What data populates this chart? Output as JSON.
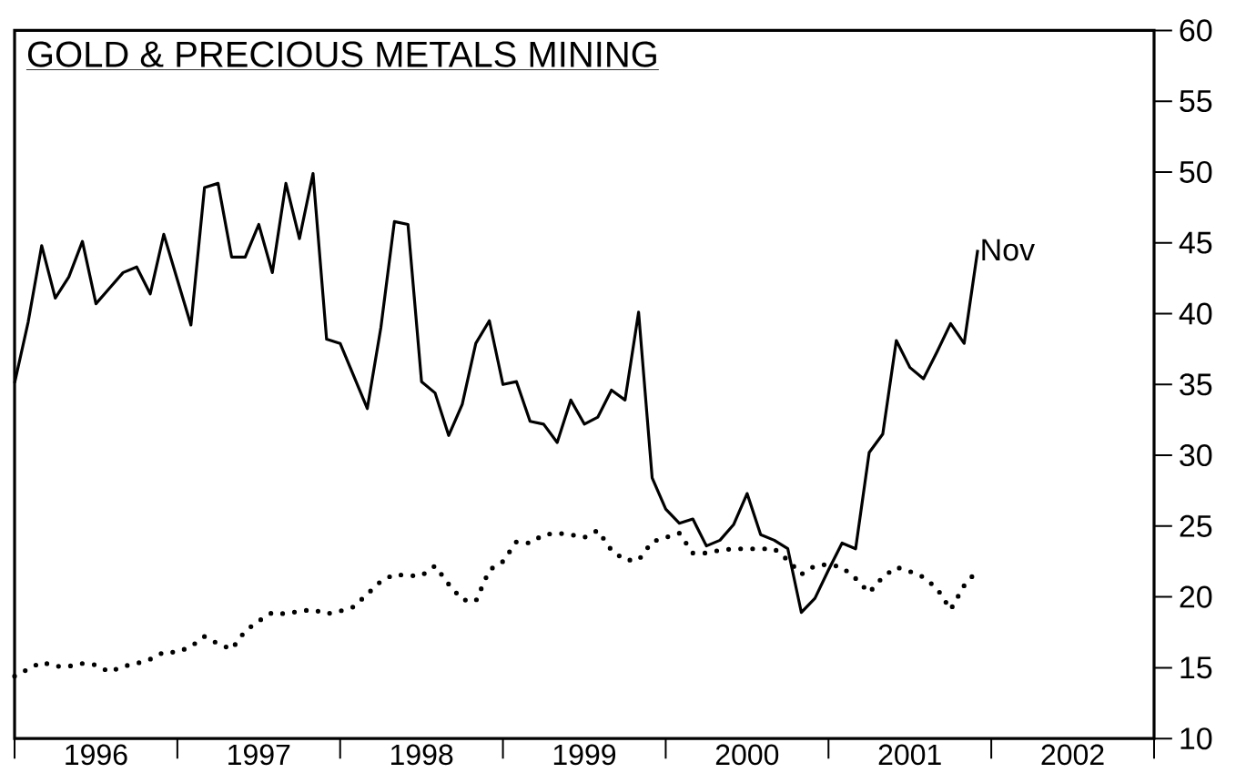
{
  "chart_data": {
    "type": "line",
    "title": "GOLD & PRECIOUS METALS MINING",
    "x": [
      "1996-01",
      "1996-02",
      "1996-03",
      "1996-04",
      "1996-05",
      "1996-06",
      "1996-07",
      "1996-08",
      "1996-09",
      "1996-10",
      "1996-11",
      "1996-12",
      "1997-01",
      "1997-02",
      "1997-03",
      "1997-04",
      "1997-05",
      "1997-06",
      "1997-07",
      "1997-08",
      "1997-09",
      "1997-10",
      "1997-11",
      "1997-12",
      "1998-01",
      "1998-02",
      "1998-03",
      "1998-04",
      "1998-05",
      "1998-06",
      "1998-07",
      "1998-08",
      "1998-09",
      "1998-10",
      "1998-11",
      "1998-12",
      "1999-01",
      "1999-02",
      "1999-03",
      "1999-04",
      "1999-05",
      "1999-06",
      "1999-07",
      "1999-08",
      "1999-09",
      "1999-10",
      "1999-11",
      "1999-12",
      "2000-01",
      "2000-02",
      "2000-03",
      "2000-04",
      "2000-05",
      "2000-06",
      "2000-07",
      "2000-08",
      "2000-09",
      "2000-10",
      "2000-11",
      "2000-12",
      "2001-01",
      "2001-02",
      "2001-03",
      "2001-04",
      "2001-05",
      "2001-06",
      "2001-07",
      "2001-08",
      "2001-09",
      "2001-10",
      "2001-11",
      "2001-12"
    ],
    "series": [
      {
        "color": "#000000",
        "line_style": "solid",
        "values": [
          35.1,
          39.4,
          44.8,
          41.1,
          42.6,
          45.1,
          40.7,
          41.8,
          42.9,
          43.3,
          41.4,
          45.6,
          42.4,
          39.2,
          48.9,
          49.2,
          44.0,
          44.0,
          46.3,
          42.9,
          49.2,
          45.3,
          49.9,
          38.2,
          37.9,
          35.6,
          33.3,
          39.0,
          46.5,
          46.3,
          35.2,
          34.4,
          31.4,
          33.6,
          37.9,
          39.5,
          35.0,
          35.2,
          32.4,
          32.2,
          30.9,
          33.9,
          32.2,
          32.7,
          34.6,
          33.9,
          40.1,
          28.4,
          26.2,
          25.2,
          25.5,
          23.6,
          24.0,
          25.1,
          27.3,
          24.4,
          24.0,
          23.4,
          18.9,
          19.9,
          21.9,
          23.8,
          23.4,
          30.2,
          31.5,
          38.1,
          36.2,
          35.4,
          37.3,
          39.3,
          37.9,
          44.5
        ]
      },
      {
        "color": "#000000",
        "line_style": "dotted",
        "values": [
          14.4,
          14.9,
          15.4,
          15.1,
          15.1,
          15.3,
          15.2,
          14.7,
          15.1,
          15.3,
          15.6,
          16.1,
          16.1,
          16.5,
          17.2,
          16.7,
          16.3,
          17.6,
          18.3,
          18.9,
          18.8,
          19.0,
          19.1,
          18.8,
          19.0,
          19.3,
          20.2,
          21.1,
          21.6,
          21.5,
          21.5,
          22.2,
          20.9,
          19.8,
          19.7,
          21.9,
          22.5,
          23.9,
          23.8,
          24.4,
          24.5,
          24.4,
          24.2,
          24.7,
          23.3,
          22.6,
          22.6,
          23.9,
          24.2,
          24.5,
          23.1,
          23.1,
          23.3,
          23.4,
          23.4,
          23.4,
          23.4,
          22.6,
          21.6,
          22.2,
          22.3,
          22.1,
          21.3,
          20.3,
          21.4,
          22.1,
          21.8,
          21.4,
          20.6,
          19.1,
          20.8,
          21.9
        ]
      }
    ],
    "annotations": [
      {
        "text": "Nov",
        "x": "2001-12",
        "y": 44.5
      }
    ],
    "xlim": [
      "1996-01",
      "2003-01"
    ],
    "xticks": [
      {
        "value": "1996-01",
        "label": null
      },
      {
        "value": "1997-01",
        "label": null
      },
      {
        "value": "1998-01",
        "label": null
      },
      {
        "value": "1999-01",
        "label": null
      },
      {
        "value": "2000-01",
        "label": null
      },
      {
        "value": "2001-01",
        "label": null
      },
      {
        "value": "2002-01",
        "label": null
      },
      {
        "value": "2003-01",
        "label": null
      },
      {
        "value": "1996-07",
        "label": "1996"
      },
      {
        "value": "1997-07",
        "label": "1997"
      },
      {
        "value": "1998-07",
        "label": "1998"
      },
      {
        "value": "1999-07",
        "label": "1999"
      },
      {
        "value": "2000-07",
        "label": "2000"
      },
      {
        "value": "2001-07",
        "label": "2001"
      },
      {
        "value": "2002-07",
        "label": "2002"
      }
    ],
    "ylim": [
      10,
      60
    ],
    "yticks": [
      10,
      15,
      20,
      25,
      30,
      35,
      40,
      45,
      50,
      55,
      60
    ]
  }
}
